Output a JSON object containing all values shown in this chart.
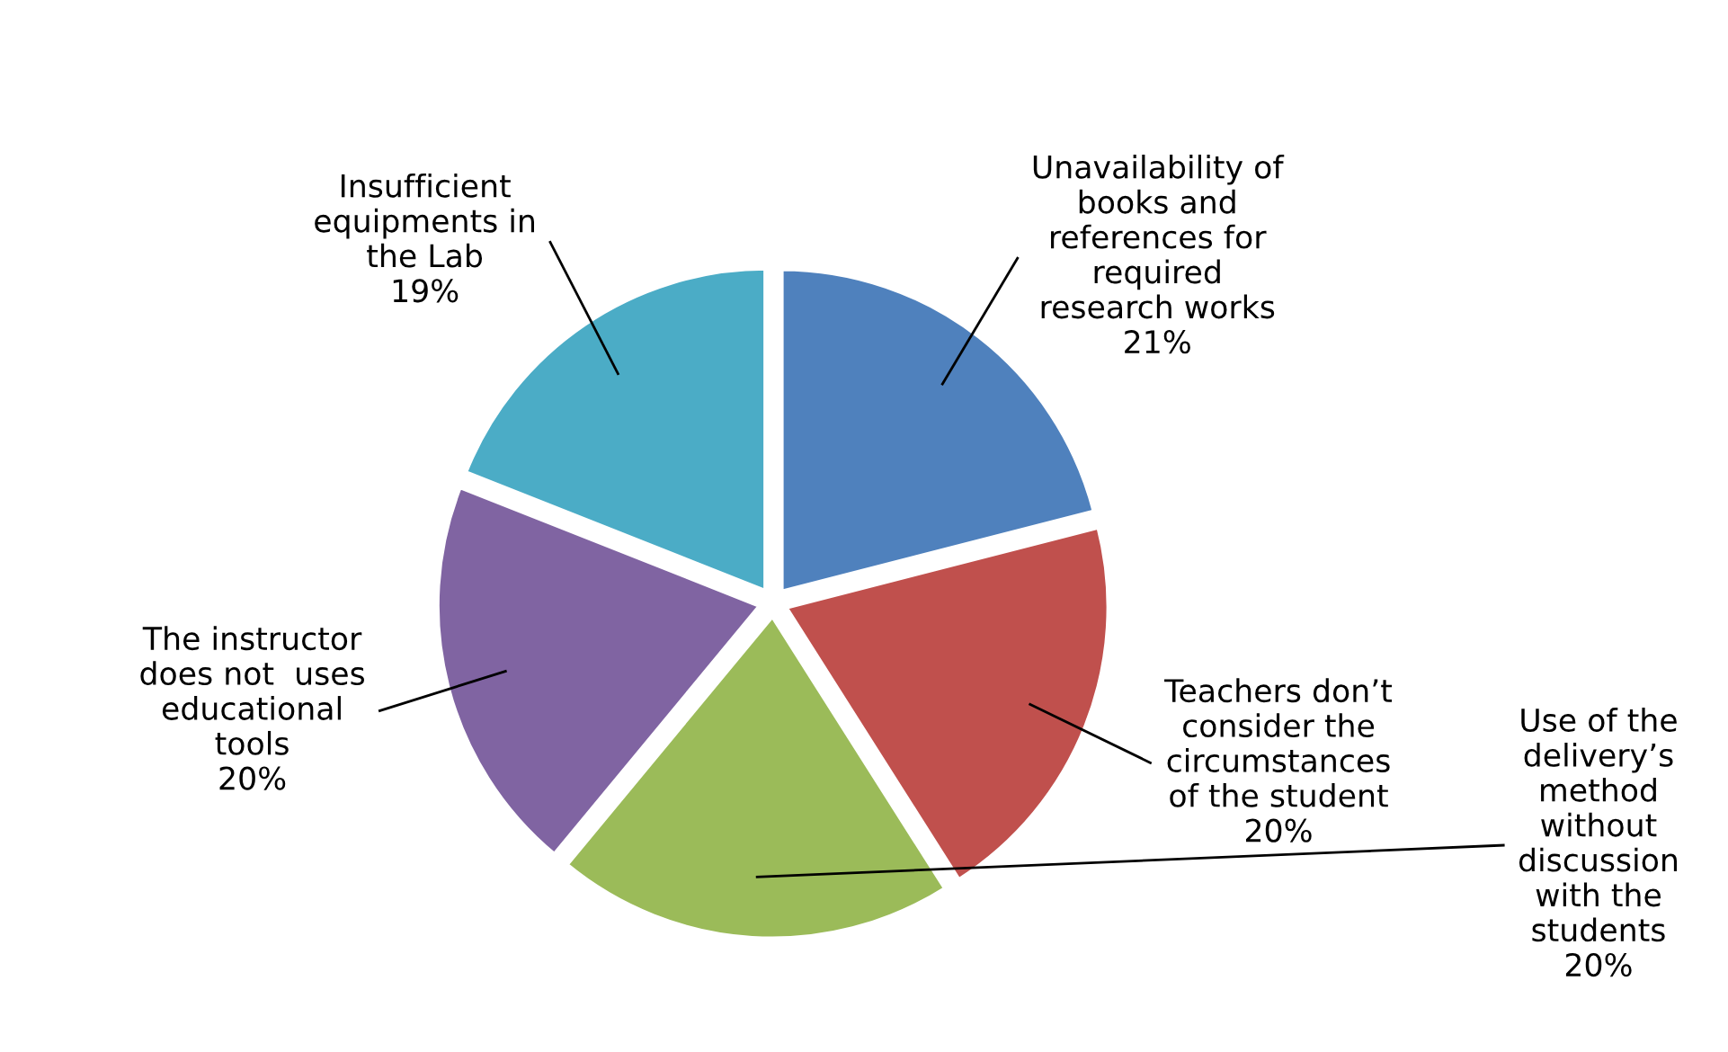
{
  "chart_data": {
    "type": "pie",
    "categories": [
      "Unavailability of\nbooks and\nreferences for\nrequired\nresearch works",
      "Teachers don’t\nconsider the\ncircumstances\nof the student",
      "Use of the\ndelivery’s\nmethod\nwithout\ndiscussion\nwith the\nstudents",
      "The instructor\ndoes not  uses\neducational\ntools",
      "Insufficient\nequipments in\nthe Lab"
    ],
    "values": [
      21,
      20,
      20,
      20,
      19
    ],
    "value_labels": [
      "21%",
      "20%",
      "20%",
      "20%",
      "19%"
    ],
    "colors": [
      "#4f81bd",
      "#c0504d",
      "#9bbb59",
      "#8064a2",
      "#4bacc6"
    ]
  }
}
